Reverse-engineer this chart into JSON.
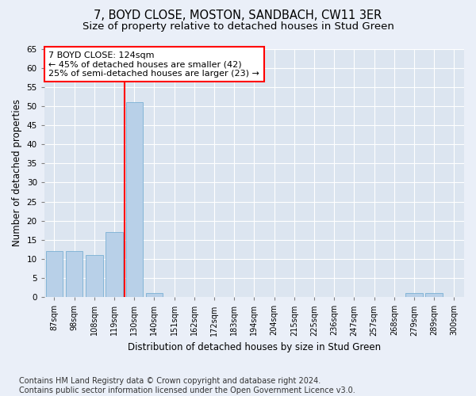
{
  "title": "7, BOYD CLOSE, MOSTON, SANDBACH, CW11 3ER",
  "subtitle": "Size of property relative to detached houses in Stud Green",
  "xlabel": "Distribution of detached houses by size in Stud Green",
  "ylabel": "Number of detached properties",
  "categories": [
    "87sqm",
    "98sqm",
    "108sqm",
    "119sqm",
    "130sqm",
    "140sqm",
    "151sqm",
    "162sqm",
    "172sqm",
    "183sqm",
    "194sqm",
    "204sqm",
    "215sqm",
    "225sqm",
    "236sqm",
    "247sqm",
    "257sqm",
    "268sqm",
    "279sqm",
    "289sqm",
    "300sqm"
  ],
  "values": [
    12,
    12,
    11,
    17,
    51,
    1,
    0,
    0,
    0,
    0,
    0,
    0,
    0,
    0,
    0,
    0,
    0,
    0,
    1,
    1,
    0
  ],
  "bar_color": "#b8d0e8",
  "bar_edge_color": "#7aafd4",
  "reference_line_x": 3.5,
  "reference_line_color": "red",
  "annotation_box_text": "7 BOYD CLOSE: 124sqm\n← 45% of detached houses are smaller (42)\n25% of semi-detached houses are larger (23) →",
  "annotation_fontsize": 8,
  "ylim": [
    0,
    65
  ],
  "yticks": [
    0,
    5,
    10,
    15,
    20,
    25,
    30,
    35,
    40,
    45,
    50,
    55,
    60,
    65
  ],
  "title_fontsize": 10.5,
  "subtitle_fontsize": 9.5,
  "xlabel_fontsize": 8.5,
  "ylabel_fontsize": 8.5,
  "footer": "Contains HM Land Registry data © Crown copyright and database right 2024.\nContains public sector information licensed under the Open Government Licence v3.0.",
  "footer_fontsize": 7,
  "bg_color": "#eaeff8",
  "plot_bg_color": "#dce5f0"
}
